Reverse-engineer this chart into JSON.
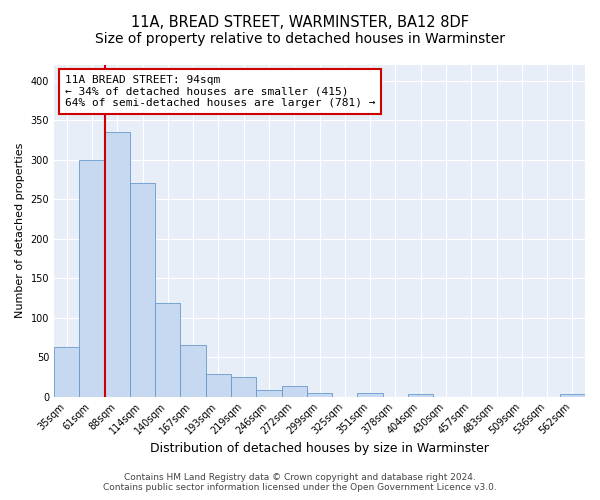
{
  "title": "11A, BREAD STREET, WARMINSTER, BA12 8DF",
  "subtitle": "Size of property relative to detached houses in Warminster",
  "xlabel": "Distribution of detached houses by size in Warminster",
  "ylabel": "Number of detached properties",
  "bar_labels": [
    "35sqm",
    "61sqm",
    "88sqm",
    "114sqm",
    "140sqm",
    "167sqm",
    "193sqm",
    "219sqm",
    "246sqm",
    "272sqm",
    "299sqm",
    "325sqm",
    "351sqm",
    "378sqm",
    "404sqm",
    "430sqm",
    "457sqm",
    "483sqm",
    "509sqm",
    "536sqm",
    "562sqm"
  ],
  "bar_values": [
    63,
    300,
    335,
    270,
    119,
    65,
    29,
    25,
    8,
    13,
    5,
    0,
    4,
    0,
    3,
    0,
    0,
    0,
    0,
    0,
    3
  ],
  "bar_color": "#c6d9f0",
  "bar_edgecolor": "#6699cc",
  "vline_color": "#cc0000",
  "vline_x_index": 2,
  "annotation_text": "11A BREAD STREET: 94sqm\n← 34% of detached houses are smaller (415)\n64% of semi-detached houses are larger (781) →",
  "annotation_box_edgecolor": "#cc0000",
  "annotation_box_facecolor": "#ffffff",
  "ylim": [
    0,
    420
  ],
  "yticks": [
    0,
    50,
    100,
    150,
    200,
    250,
    300,
    350,
    400
  ],
  "footer_text": "Contains HM Land Registry data © Crown copyright and database right 2024.\nContains public sector information licensed under the Open Government Licence v3.0.",
  "bg_color": "#ffffff",
  "plot_bg_color": "#e8eef8",
  "grid_color": "#ffffff",
  "title_fontsize": 10.5,
  "xlabel_fontsize": 9,
  "ylabel_fontsize": 8,
  "tick_fontsize": 7,
  "annotation_fontsize": 8,
  "footer_fontsize": 6.5
}
